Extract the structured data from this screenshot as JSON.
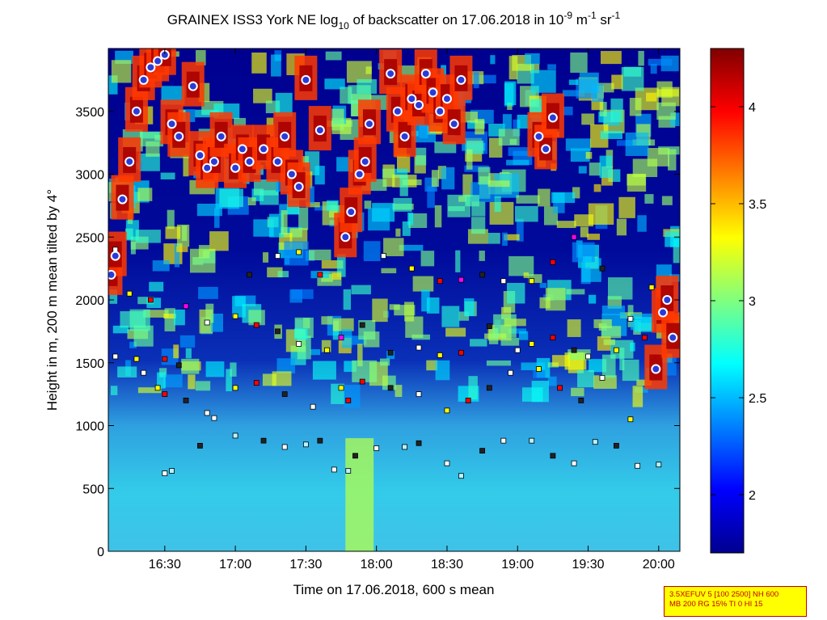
{
  "chart_data": {
    "type": "heatmap",
    "title": {
      "prefix": "GRAINEX ISS3 York NE log",
      "sub": "10",
      "mid": " of backscatter on 17.06.2018 in 10",
      "sup1": "-9",
      "unit1": " m",
      "sup2": "-1",
      "unit2": " sr",
      "sup3": "-1"
    },
    "xlabel": "Time on 17.06.2018, 600 s mean",
    "ylabel": "Height in m, 200 m mean tilted by 4°",
    "xlim_hours": [
      16.1,
      20.15
    ],
    "ylim": [
      0,
      4000
    ],
    "x_ticks": [
      {
        "label": "16:30",
        "hour": 16.5
      },
      {
        "label": "17:00",
        "hour": 17.0
      },
      {
        "label": "17:30",
        "hour": 17.5
      },
      {
        "label": "18:00",
        "hour": 18.0
      },
      {
        "label": "18:30",
        "hour": 18.5
      },
      {
        "label": "19:00",
        "hour": 19.0
      },
      {
        "label": "19:30",
        "hour": 19.5
      },
      {
        "label": "20:00",
        "hour": 20.0
      }
    ],
    "y_ticks": [
      0,
      500,
      1000,
      1500,
      2000,
      2500,
      3000,
      3500
    ],
    "colorbar": {
      "min": 1.7,
      "max": 4.3,
      "ticks": [
        "2",
        "2.5",
        "3",
        "3.5",
        "4"
      ],
      "colormap": "jet"
    },
    "colors": {
      "low": "#00008f",
      "high": "#800000",
      "cloud_marker_fill": "#2b3bd8",
      "cloud_marker_edge": "#ffffff",
      "layer_marker_edge": "#000000"
    },
    "layers": [
      {
        "name": "lowest",
        "marker": "square",
        "colors": [
          "#ffffff",
          "#b7f3ff",
          "#222222"
        ],
        "points": [
          [
            16.5,
            620
          ],
          [
            16.55,
            640
          ],
          [
            16.75,
            840
          ],
          [
            16.85,
            1060
          ],
          [
            17.0,
            920
          ],
          [
            17.2,
            880
          ],
          [
            17.35,
            830
          ],
          [
            17.5,
            850
          ],
          [
            17.6,
            880
          ],
          [
            17.7,
            650
          ],
          [
            17.8,
            640
          ],
          [
            17.85,
            760
          ],
          [
            18.0,
            820
          ],
          [
            18.2,
            830
          ],
          [
            18.3,
            860
          ],
          [
            18.5,
            700
          ],
          [
            18.6,
            600
          ],
          [
            18.75,
            800
          ],
          [
            18.9,
            880
          ],
          [
            19.1,
            880
          ],
          [
            19.25,
            760
          ],
          [
            19.4,
            700
          ],
          [
            19.55,
            870
          ],
          [
            19.7,
            840
          ],
          [
            19.85,
            680
          ],
          [
            20.0,
            690
          ]
        ]
      },
      {
        "name": "second",
        "marker": "square",
        "colors": [
          "#ffffff",
          "#ffff00",
          "#ff0000",
          "#222222"
        ],
        "points": [
          [
            16.35,
            1420
          ],
          [
            16.45,
            1300
          ],
          [
            16.5,
            1250
          ],
          [
            16.65,
            1200
          ],
          [
            16.8,
            1100
          ],
          [
            17.0,
            1300
          ],
          [
            17.15,
            1340
          ],
          [
            17.35,
            1250
          ],
          [
            17.55,
            1150
          ],
          [
            17.75,
            1300
          ],
          [
            17.9,
            1350
          ],
          [
            18.1,
            1300
          ],
          [
            18.3,
            1250
          ],
          [
            18.5,
            1120
          ],
          [
            18.65,
            1200
          ],
          [
            18.8,
            1300
          ],
          [
            18.95,
            1420
          ],
          [
            19.15,
            1450
          ],
          [
            19.3,
            1300
          ],
          [
            19.45,
            1200
          ],
          [
            19.6,
            1380
          ],
          [
            19.8,
            1050
          ]
        ]
      },
      {
        "name": "third",
        "marker": "square",
        "colors": [
          "#ffffff",
          "#ffff00",
          "#ff0000",
          "#222222"
        ],
        "points": [
          [
            16.15,
            1550
          ],
          [
            16.3,
            1530
          ],
          [
            16.5,
            1530
          ],
          [
            16.6,
            1480
          ],
          [
            16.8,
            1820
          ],
          [
            17.0,
            1870
          ],
          [
            17.15,
            1800
          ],
          [
            17.3,
            1750
          ],
          [
            17.45,
            1650
          ],
          [
            17.65,
            1600
          ],
          [
            17.8,
            1200
          ],
          [
            18.1,
            1580
          ],
          [
            18.3,
            1620
          ],
          [
            18.45,
            1560
          ],
          [
            18.6,
            1580
          ],
          [
            18.8,
            1790
          ],
          [
            19.0,
            1600
          ],
          [
            19.1,
            1650
          ],
          [
            19.25,
            1700
          ],
          [
            19.4,
            1600
          ],
          [
            19.5,
            1550
          ],
          [
            19.7,
            1600
          ],
          [
            19.9,
            1700
          ]
        ]
      },
      {
        "name": "upper",
        "marker": "square",
        "colors": [
          "#ffffff",
          "#ffff00",
          "#ff0000",
          "#ff00ff",
          "#222222"
        ],
        "points": [
          [
            16.15,
            2400
          ],
          [
            16.25,
            2050
          ],
          [
            16.4,
            2000
          ],
          [
            16.65,
            1950
          ],
          [
            17.1,
            2200
          ],
          [
            17.3,
            2350
          ],
          [
            17.45,
            2380
          ],
          [
            17.6,
            2200
          ],
          [
            17.75,
            1700
          ],
          [
            17.9,
            1800
          ],
          [
            18.05,
            2350
          ],
          [
            18.25,
            2250
          ],
          [
            18.45,
            2150
          ],
          [
            18.6,
            2160
          ],
          [
            18.75,
            2200
          ],
          [
            18.9,
            2150
          ],
          [
            19.1,
            2150
          ],
          [
            19.25,
            2300
          ],
          [
            19.4,
            2500
          ],
          [
            19.6,
            2250
          ],
          [
            19.8,
            1850
          ],
          [
            19.95,
            2100
          ]
        ]
      }
    ],
    "cloud_base": {
      "marker": "circle",
      "points": [
        [
          16.12,
          2200
        ],
        [
          16.15,
          2350
        ],
        [
          16.2,
          2800
        ],
        [
          16.25,
          3100
        ],
        [
          16.3,
          3500
        ],
        [
          16.35,
          3750
        ],
        [
          16.4,
          3850
        ],
        [
          16.45,
          3900
        ],
        [
          16.5,
          3950
        ],
        [
          16.55,
          3400
        ],
        [
          16.6,
          3300
        ],
        [
          16.7,
          3700
        ],
        [
          16.75,
          3150
        ],
        [
          16.8,
          3050
        ],
        [
          16.85,
          3100
        ],
        [
          16.9,
          3300
        ],
        [
          17.0,
          3050
        ],
        [
          17.05,
          3200
        ],
        [
          17.1,
          3100
        ],
        [
          17.2,
          3200
        ],
        [
          17.3,
          3100
        ],
        [
          17.35,
          3300
        ],
        [
          17.4,
          3000
        ],
        [
          17.45,
          2900
        ],
        [
          17.5,
          3750
        ],
        [
          17.6,
          3350
        ],
        [
          17.78,
          2500
        ],
        [
          17.82,
          2700
        ],
        [
          17.88,
          3000
        ],
        [
          17.92,
          3100
        ],
        [
          17.95,
          3400
        ],
        [
          18.1,
          3800
        ],
        [
          18.15,
          3500
        ],
        [
          18.2,
          3300
        ],
        [
          18.25,
          3600
        ],
        [
          18.3,
          3550
        ],
        [
          18.35,
          3800
        ],
        [
          18.4,
          3650
        ],
        [
          18.45,
          3500
        ],
        [
          18.5,
          3600
        ],
        [
          18.55,
          3400
        ],
        [
          18.6,
          3750
        ],
        [
          19.15,
          3300
        ],
        [
          19.2,
          3200
        ],
        [
          19.25,
          3450
        ],
        [
          19.98,
          1450
        ],
        [
          20.03,
          1900
        ],
        [
          20.06,
          2000
        ],
        [
          20.1,
          1700
        ]
      ]
    }
  },
  "info_box": {
    "line1": "3.5XEFUV 5 [100 2500] NH 600",
    "line2": "MB 200 RG 15% TI 0 HI 15"
  }
}
